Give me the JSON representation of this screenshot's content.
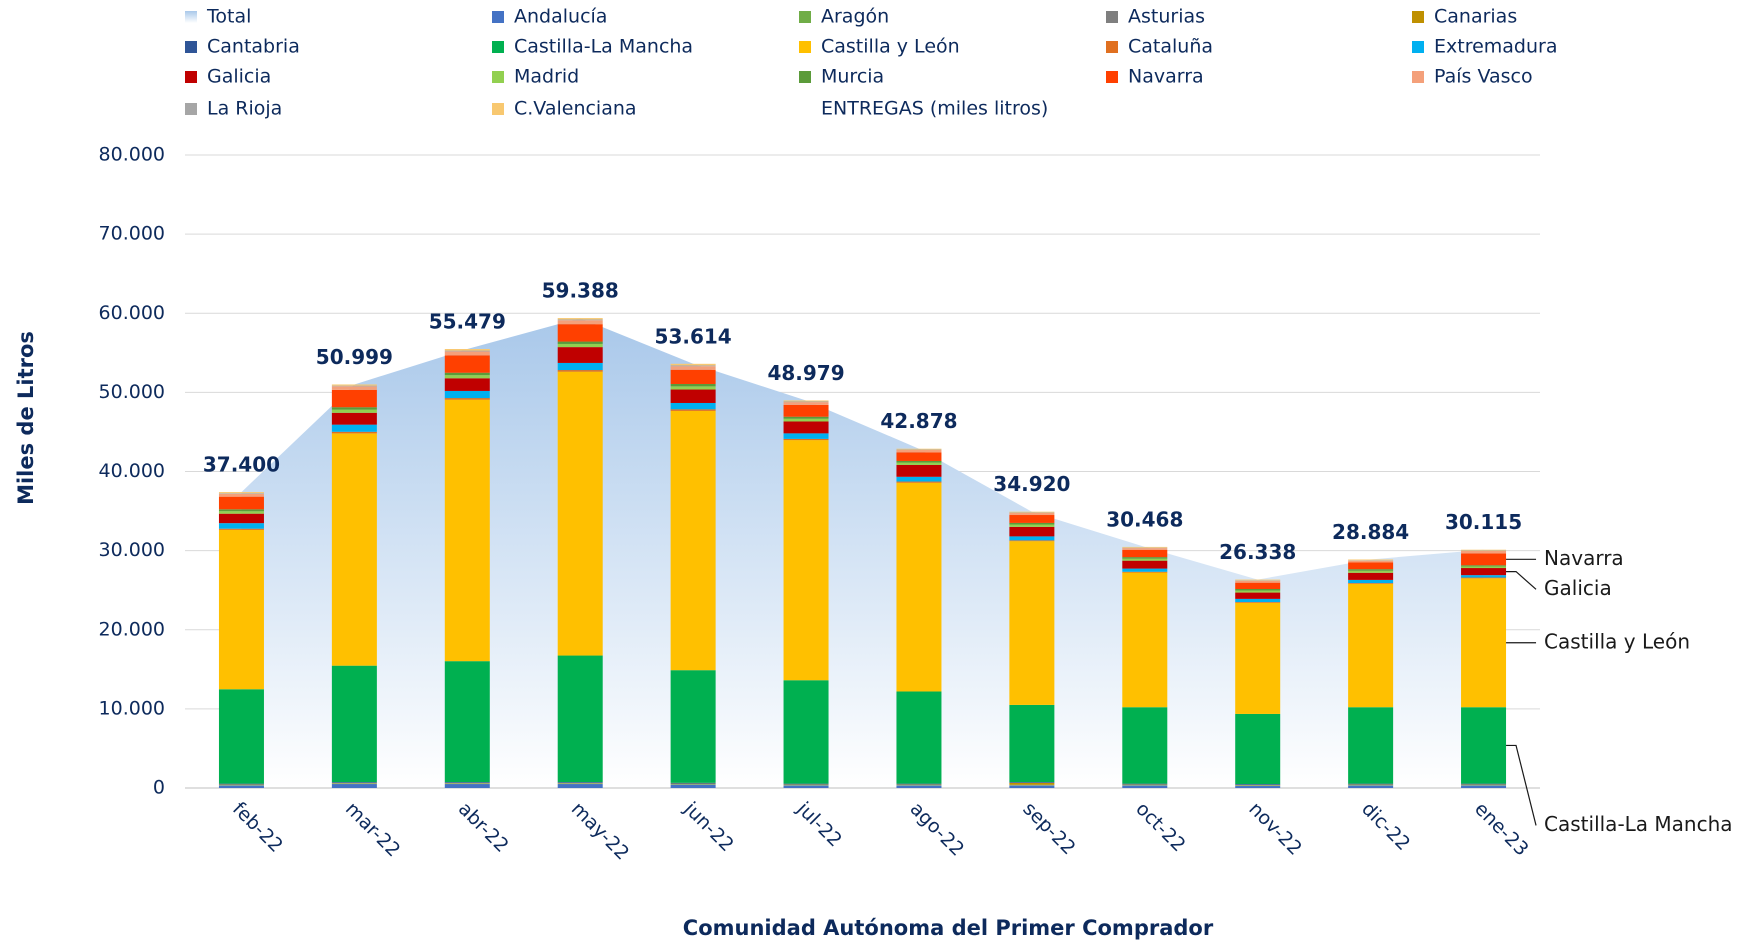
{
  "chart_data": {
    "type": "bar",
    "stacked": true,
    "grid": true,
    "x_label": "Comunidad Autónoma del Primer Comprador",
    "y_label": "Miles de Litros",
    "legend_note": "ENTREGAS (miles litros)",
    "categories": [
      "feb-22",
      "mar-22",
      "abr-22",
      "may-22",
      "jun-22",
      "jul-22",
      "ago-22",
      "sep-22",
      "oct-22",
      "nov-22",
      "dic-22",
      "ene-23"
    ],
    "ylim": [
      0,
      80000
    ],
    "yticks": [
      0,
      {
        "value": 10000,
        "label": "10.000"
      },
      {
        "value": 20000,
        "label": "20.000"
      },
      {
        "value": 30000,
        "label": "30.000"
      },
      {
        "value": 40000,
        "label": "40.000"
      },
      {
        "value": 50000,
        "label": "50.000"
      },
      {
        "value": 60000,
        "label": "60.000"
      },
      {
        "value": 70000,
        "label": "70.000"
      },
      {
        "value": 80000,
        "label": "80.000"
      }
    ],
    "series": [
      {
        "name": "Total",
        "type": "area",
        "color": "#a9c8ea",
        "values": [
          37400,
          50999,
          55479,
          59388,
          53614,
          48979,
          42878,
          34920,
          30468,
          26338,
          28884,
          30115
        ],
        "value_labels": [
          "37.400",
          "50.999",
          "55.479",
          "59.388",
          "53.614",
          "48.979",
          "42.878",
          "34.920",
          "30.468",
          "26.338",
          "28.884",
          "30.115"
        ]
      },
      {
        "name": "Andalucía",
        "color": "#4472c4",
        "values": [
          300,
          500,
          500,
          500,
          400,
          300,
          300,
          300,
          300,
          250,
          300,
          300
        ]
      },
      {
        "name": "Aragón",
        "color": "#70ad47",
        "values": [
          50,
          50,
          50,
          50,
          50,
          50,
          50,
          50,
          50,
          50,
          50,
          50
        ]
      },
      {
        "name": "Asturias",
        "color": "#7f7f7f",
        "values": [
          50,
          50,
          50,
          50,
          50,
          50,
          50,
          50,
          50,
          50,
          50,
          50
        ]
      },
      {
        "name": "Canarias",
        "color": "#bf9000",
        "values": [
          50,
          50,
          50,
          50,
          50,
          50,
          50,
          250,
          50,
          50,
          50,
          50
        ]
      },
      {
        "name": "Cantabria",
        "color": "#2f5597",
        "values": [
          100,
          100,
          100,
          100,
          100,
          100,
          100,
          100,
          100,
          100,
          100,
          100
        ]
      },
      {
        "name": "Castilla-La Mancha",
        "color": "#00b050",
        "values": [
          11930,
          14710,
          15280,
          15990,
          14240,
          13070,
          11650,
          9750,
          9660,
          8860,
          9660,
          9660
        ]
      },
      {
        "name": "Castilla y León",
        "color": "#ffc000",
        "values": [
          20140,
          29360,
          33050,
          35880,
          32770,
          30350,
          26380,
          20700,
          17020,
          14040,
          15590,
          16290
        ]
      },
      {
        "name": "Cataluña",
        "color": "#e07020",
        "values": [
          150,
          200,
          200,
          200,
          200,
          150,
          150,
          100,
          100,
          100,
          100,
          100
        ]
      },
      {
        "name": "Extremadura",
        "color": "#00b0f0",
        "values": [
          700,
          900,
          900,
          900,
          800,
          700,
          600,
          500,
          400,
          400,
          400,
          300
        ]
      },
      {
        "name": "Galicia",
        "color": "#c00000",
        "values": [
          1200,
          1500,
          1600,
          2000,
          1700,
          1500,
          1500,
          1200,
          1000,
          800,
          900,
          900
        ]
      },
      {
        "name": "Madrid",
        "color": "#92d050",
        "values": [
          300,
          400,
          400,
          400,
          400,
          350,
          300,
          300,
          250,
          250,
          250,
          200
        ]
      },
      {
        "name": "Murcia",
        "color": "#5b9b3a",
        "values": [
          250,
          300,
          300,
          300,
          300,
          250,
          200,
          200,
          200,
          200,
          200,
          150
        ]
      },
      {
        "name": "Navarra",
        "color": "#ff4000",
        "values": [
          1600,
          2200,
          2200,
          2200,
          1800,
          1500,
          1100,
          1000,
          900,
          800,
          850,
          1500
        ]
      },
      {
        "name": "País Vasco",
        "color": "#f4a07a",
        "values": [
          350,
          450,
          500,
          500,
          450,
          350,
          300,
          270,
          240,
          240,
          230,
          315
        ]
      },
      {
        "name": "La Rioja",
        "color": "#a6a6a6",
        "values": [
          80,
          80,
          100,
          100,
          100,
          80,
          50,
          50,
          50,
          50,
          50,
          50
        ]
      },
      {
        "name": "C.Valenciana",
        "color": "#f8c870",
        "values": [
          150,
          150,
          200,
          170,
          200,
          130,
          100,
          100,
          100,
          100,
          100,
          100
        ]
      }
    ],
    "annotations": [
      "Navarra",
      "Galicia",
      "Castilla y León",
      "Castilla-La Mancha"
    ]
  }
}
